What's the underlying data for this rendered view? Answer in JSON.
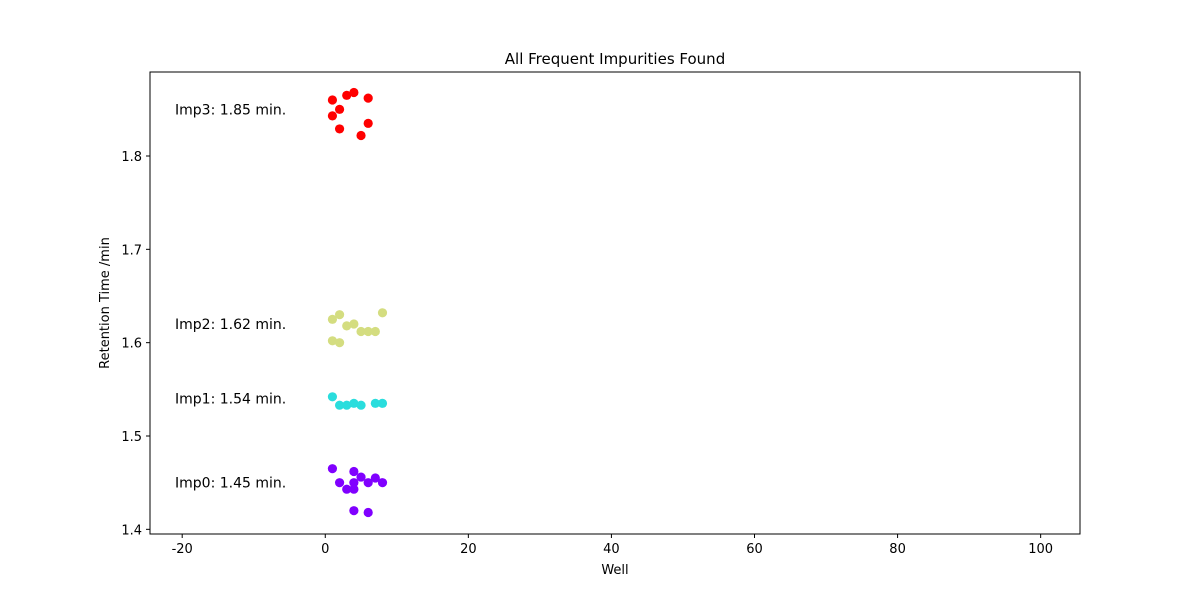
{
  "chart_data": {
    "type": "scatter",
    "title": "All Frequent Impurities Found",
    "xlabel": "Well",
    "ylabel": "Retention Time /min",
    "xlim": [
      -24.5,
      105.5
    ],
    "ylim": [
      1.395,
      1.89
    ],
    "x_ticks": [
      -20,
      0,
      20,
      40,
      60,
      80,
      100
    ],
    "y_ticks": [
      1.4,
      1.5,
      1.6,
      1.7,
      1.8
    ],
    "grid": false,
    "legend": "none",
    "series": [
      {
        "color": "#8000ff",
        "points": [
          [
            1,
            1.465
          ],
          [
            2,
            1.45
          ],
          [
            3,
            1.443
          ],
          [
            4,
            1.462
          ],
          [
            4,
            1.45
          ],
          [
            4,
            1.443
          ],
          [
            5,
            1.456
          ],
          [
            6,
            1.45
          ],
          [
            7,
            1.455
          ],
          [
            8,
            1.45
          ],
          [
            4,
            1.42
          ],
          [
            6,
            1.418
          ]
        ]
      },
      {
        "color": "#2adddd",
        "points": [
          [
            1,
            1.542
          ],
          [
            2,
            1.533
          ],
          [
            3,
            1.533
          ],
          [
            4,
            1.535
          ],
          [
            5,
            1.533
          ],
          [
            7,
            1.535
          ],
          [
            8,
            1.535
          ]
        ]
      },
      {
        "color": "#d4dd80",
        "points": [
          [
            1,
            1.625
          ],
          [
            2,
            1.63
          ],
          [
            3,
            1.618
          ],
          [
            4,
            1.62
          ],
          [
            5,
            1.612
          ],
          [
            6,
            1.612
          ],
          [
            7,
            1.612
          ],
          [
            8,
            1.632
          ],
          [
            1,
            1.602
          ],
          [
            2,
            1.6
          ]
        ]
      },
      {
        "color": "#ff0000",
        "points": [
          [
            1,
            1.86
          ],
          [
            2,
            1.85
          ],
          [
            3,
            1.865
          ],
          [
            4,
            1.868
          ],
          [
            6,
            1.862
          ],
          [
            1,
            1.843
          ],
          [
            2,
            1.829
          ],
          [
            5,
            1.822
          ],
          [
            6,
            1.835
          ]
        ]
      }
    ],
    "annotations": [
      {
        "text": "Imp0: 1.45 min.",
        "x": -21,
        "y": 1.45
      },
      {
        "text": "Imp1: 1.54 min.",
        "x": -21,
        "y": 1.54
      },
      {
        "text": "Imp2: 1.62 min.",
        "x": -21,
        "y": 1.62
      },
      {
        "text": "Imp3: 1.85 min.",
        "x": -21,
        "y": 1.85
      }
    ]
  }
}
